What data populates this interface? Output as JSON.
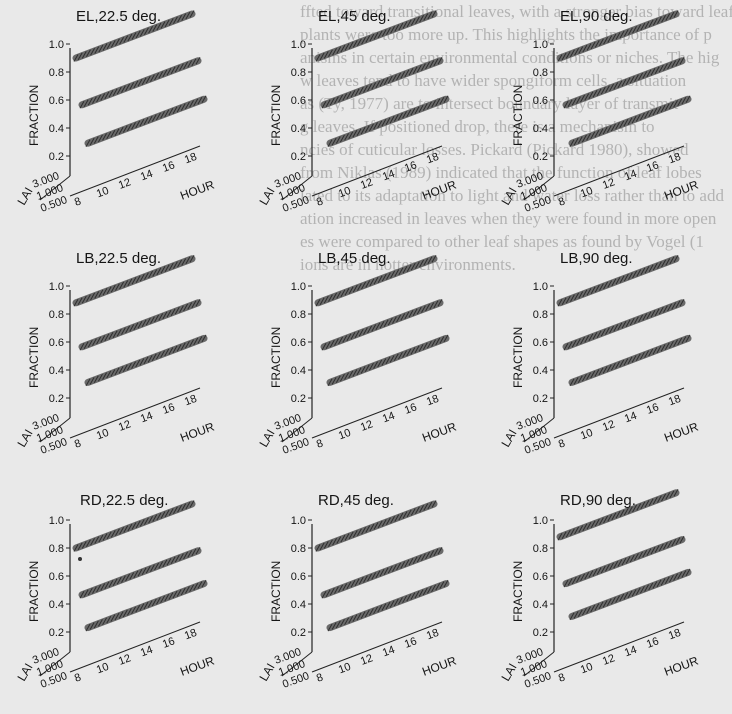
{
  "background_text": [
    "ffted toward transitional leaves, with a stronger bias toward leaf fe",
    "plants were too more up. This highlights the importance of p",
    "anisms in certain environmental conditions or niches. The hig",
    "w leaves tend to have wider spongiform cells, a situation",
    "as (Ty, 1977) are to intersect boundary layer of transmit",
    "g leaves. If positioned drop, there is a mechanism to",
    "ncies of cuticular losses. Pickard (Pickard 1980), showed",
    "from Niklas (1989) indicated that the function of leaf lobes ",
    "lated to its adaptation to light and water loss rather than to add",
    "ation increased in leaves when they were found in more open",
    "es were compared to other leaf shapes as found by Vogel (1",
    "ions are in hotter environments."
  ],
  "figure": {
    "axis_labels": {
      "y": "FRACTION",
      "x": "HOUR",
      "z": "LAI"
    },
    "y_ticks": [
      "1.0",
      "0.8",
      "0.6",
      "0.4",
      "0.2"
    ],
    "x_ticks": [
      "8",
      "10",
      "12",
      "14",
      "16",
      "18"
    ],
    "z_ticks": [
      "3.000",
      "1.000",
      "0.500"
    ],
    "panels": [
      {
        "title": "EL,22.5 deg.",
        "fractions": [
          0.9,
          0.58,
          0.32
        ]
      },
      {
        "title": "EL,45 deg.",
        "fractions": [
          0.9,
          0.58,
          0.32
        ]
      },
      {
        "title": "EL,90 deg.",
        "fractions": [
          0.9,
          0.58,
          0.32
        ]
      },
      {
        "title": "LB,22.5 deg.",
        "fractions": [
          0.88,
          0.58,
          0.34
        ]
      },
      {
        "title": "LB,45 deg.",
        "fractions": [
          0.88,
          0.58,
          0.34
        ]
      },
      {
        "title": "LB,90 deg.",
        "fractions": [
          0.88,
          0.58,
          0.34
        ]
      },
      {
        "title": "RD,22.5 deg.",
        "fractions": [
          0.8,
          0.48,
          0.26
        ]
      },
      {
        "title": "RD,45 deg.",
        "fractions": [
          0.8,
          0.48,
          0.26
        ]
      },
      {
        "title": "RD,90 deg.",
        "fractions": [
          0.88,
          0.56,
          0.34
        ]
      }
    ]
  }
}
